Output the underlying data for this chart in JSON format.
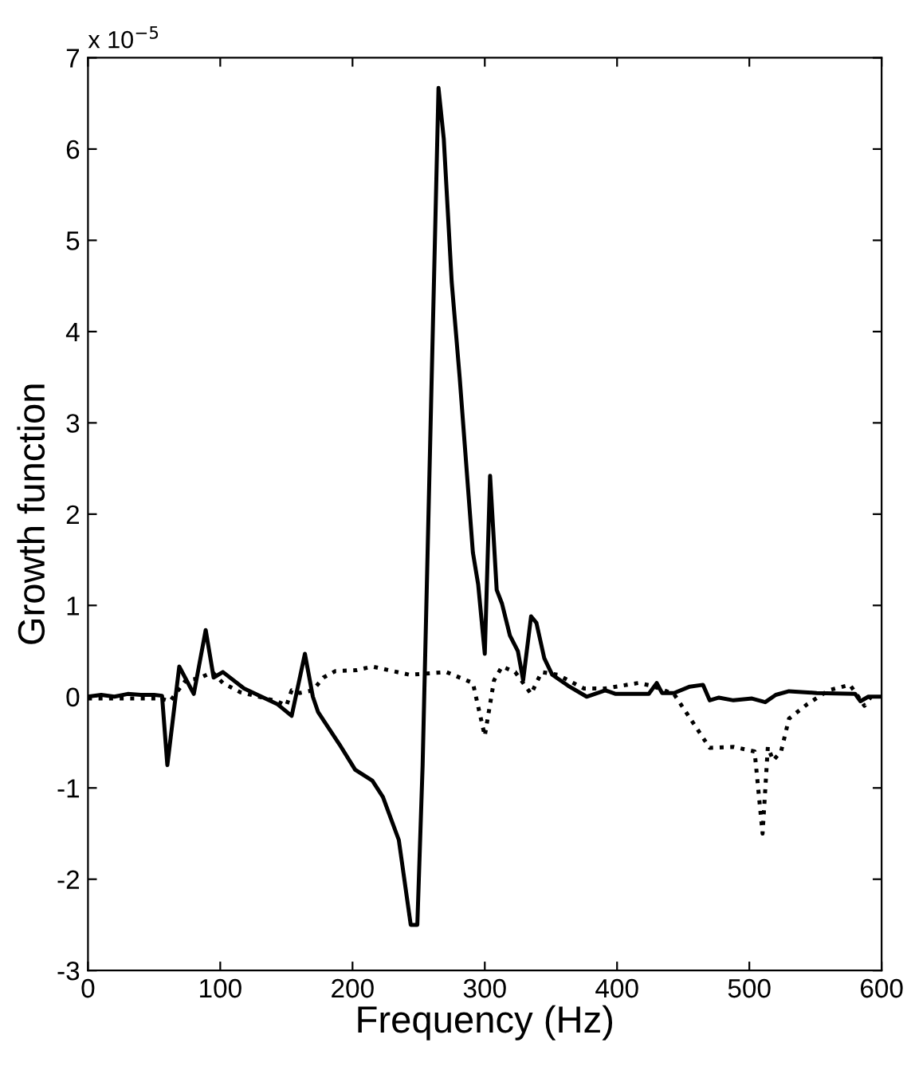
{
  "chart_data": {
    "type": "line",
    "xlabel": "Frequency (Hz)",
    "ylabel": "Growth function",
    "annotations": [
      "x 10$^{−5}$"
    ],
    "xlim": [
      0,
      600
    ],
    "xticks": [
      0,
      100,
      200,
      300,
      400,
      500,
      600
    ],
    "ylim": [
      -3,
      7
    ],
    "yticks": [
      -3,
      -2,
      -1,
      0,
      1,
      2,
      3,
      4,
      5,
      6,
      7
    ],
    "grid": false,
    "legend": false,
    "series": [
      {
        "color": "#000000",
        "line_style": "solid",
        "x": [
          0,
          10,
          20,
          30,
          40,
          50,
          56,
          60,
          69,
          80,
          89,
          95,
          102,
          118,
          143,
          154,
          164,
          170,
          174,
          190,
          202,
          215,
          223,
          235,
          244,
          249,
          253,
          265,
          269,
          275,
          281,
          291,
          295,
          300,
          304,
          309,
          313,
          319,
          325,
          329,
          335,
          339,
          345,
          351,
          363,
          377,
          391,
          399,
          416,
          424,
          430,
          434,
          443,
          455,
          465,
          470,
          477,
          488,
          502,
          512,
          520,
          530,
          551,
          580,
          584,
          590,
          600
        ],
        "values": [
          0,
          0.02,
          0,
          0.03,
          0.02,
          0.02,
          0.01,
          -0.75,
          0.33,
          0.03,
          0.73,
          0.21,
          0.27,
          0.09,
          -0.08,
          -0.21,
          0.47,
          0,
          -0.17,
          -0.52,
          -0.8,
          -0.92,
          -1.1,
          -1.57,
          -2.5,
          -2.5,
          -0.75,
          6.67,
          6.11,
          4.54,
          3.5,
          1.58,
          1.23,
          0.47,
          2.42,
          1.17,
          1.02,
          0.67,
          0.5,
          0.18,
          0.88,
          0.81,
          0.42,
          0.24,
          0.12,
          0,
          0.07,
          0.03,
          0.03,
          0.03,
          0.15,
          0.04,
          0.04,
          0.11,
          0.13,
          -0.04,
          -0.01,
          -0.04,
          -0.02,
          -0.06,
          0.02,
          0.06,
          0.04,
          0.03,
          -0.05,
          0,
          0
        ]
      },
      {
        "color": "#000000",
        "line_style": "dotted",
        "x": [
          0,
          55,
          62,
          74,
          84,
          94,
          102,
          115,
          143,
          150,
          154,
          160,
          170,
          178,
          187,
          203,
          215,
          243,
          271,
          291,
          300,
          307,
          313,
          323,
          335,
          343,
          355,
          375,
          391,
          416,
          426,
          443,
          470,
          488,
          504,
          510,
          514,
          518,
          524,
          530,
          544,
          560,
          576,
          581,
          587,
          592
        ],
        "values": [
          -0.02,
          -0.02,
          -0.05,
          0.18,
          0.2,
          0.27,
          0.15,
          0.05,
          -0.05,
          -0.1,
          0.07,
          0.04,
          0.07,
          0.21,
          0.28,
          0.29,
          0.33,
          0.24,
          0.27,
          0.15,
          -0.43,
          0.18,
          0.33,
          0.27,
          0.03,
          0.27,
          0.24,
          0.09,
          0.09,
          0.15,
          0.12,
          0.03,
          -0.56,
          -0.55,
          -0.6,
          -1.5,
          -0.55,
          -0.7,
          -0.6,
          -0.24,
          -0.08,
          0.07,
          0.13,
          0.03,
          -0.1,
          0
        ]
      }
    ]
  }
}
